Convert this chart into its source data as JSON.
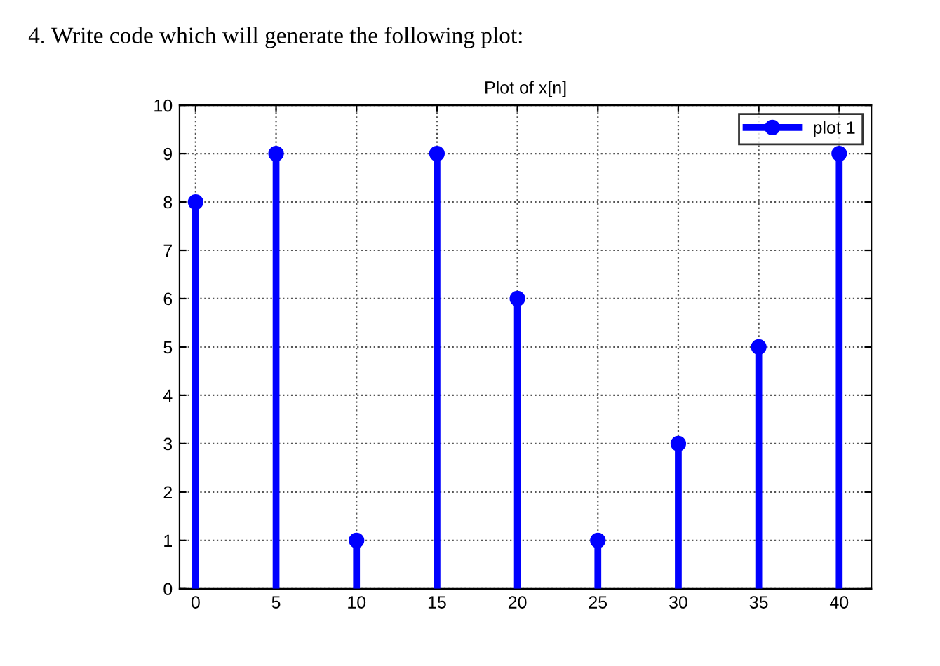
{
  "chart_data": {
    "type": "lollipop",
    "title": "Plot of x[n]",
    "annotations": [
      "4. Write code which will generate the following plot:"
    ],
    "x": [
      0,
      5,
      10,
      15,
      20,
      25,
      30,
      35,
      40
    ],
    "series": [
      {
        "name": "plot 1",
        "color": "#0000ff",
        "values": [
          8,
          9,
          1,
          9,
          6,
          1,
          3,
          5,
          9
        ]
      }
    ],
    "xlim": [
      -1,
      42
    ],
    "ylim": [
      0,
      10
    ],
    "xticks": [
      0,
      5,
      10,
      15,
      20,
      25,
      30,
      35,
      40
    ],
    "yticks": [
      0,
      1,
      2,
      3,
      4,
      5,
      6,
      7,
      8,
      9,
      10
    ],
    "grid": true,
    "legend": "top right",
    "marker": "circle",
    "line_style": "solid"
  }
}
